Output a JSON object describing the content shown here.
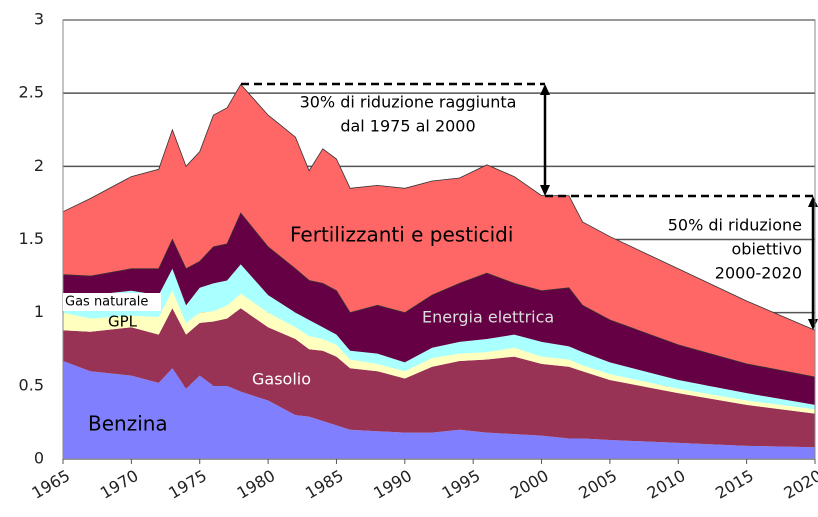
{
  "chart_data": {
    "type": "stacked_area",
    "x": [
      1965,
      1967,
      1970,
      1972,
      1973,
      1974,
      1975,
      1976,
      1977,
      1978,
      1980,
      1982,
      1983,
      1984,
      1985,
      1986,
      1988,
      1990,
      1992,
      1994,
      1996,
      1998,
      2000,
      2002,
      2003,
      2005,
      2010,
      2015,
      2020
    ],
    "series": [
      {
        "name": "Benzina",
        "color": "#8080ff",
        "values": [
          0.67,
          0.6,
          0.57,
          0.52,
          0.62,
          0.48,
          0.57,
          0.5,
          0.5,
          0.46,
          0.4,
          0.3,
          0.29,
          0.26,
          0.23,
          0.2,
          0.19,
          0.18,
          0.18,
          0.2,
          0.18,
          0.17,
          0.16,
          0.14,
          0.14,
          0.13,
          0.11,
          0.09,
          0.08
        ]
      },
      {
        "name": "Gasolio",
        "color": "#993355",
        "values": [
          0.21,
          0.27,
          0.33,
          0.33,
          0.41,
          0.37,
          0.36,
          0.44,
          0.46,
          0.57,
          0.5,
          0.52,
          0.46,
          0.48,
          0.47,
          0.42,
          0.41,
          0.37,
          0.45,
          0.47,
          0.5,
          0.53,
          0.49,
          0.49,
          0.46,
          0.41,
          0.34,
          0.28,
          0.23
        ]
      },
      {
        "name": "GPL",
        "color": "#ffffc0",
        "values": [
          0.12,
          0.09,
          0.08,
          0.12,
          0.12,
          0.08,
          0.07,
          0.07,
          0.09,
          0.1,
          0.1,
          0.08,
          0.09,
          0.08,
          0.08,
          0.06,
          0.05,
          0.05,
          0.06,
          0.05,
          0.05,
          0.06,
          0.05,
          0.05,
          0.04,
          0.04,
          0.03,
          0.03,
          0.03
        ]
      },
      {
        "name": "Gas naturale",
        "color": "#aaffff",
        "values": [
          0.13,
          0.16,
          0.17,
          0.15,
          0.15,
          0.12,
          0.17,
          0.19,
          0.17,
          0.2,
          0.12,
          0.1,
          0.11,
          0.08,
          0.07,
          0.06,
          0.07,
          0.06,
          0.07,
          0.08,
          0.09,
          0.09,
          0.1,
          0.09,
          0.09,
          0.08,
          0.06,
          0.05,
          0.03
        ]
      },
      {
        "name": "Energia elettrica",
        "color": "#660044",
        "values": [
          0.13,
          0.13,
          0.15,
          0.18,
          0.2,
          0.25,
          0.18,
          0.25,
          0.25,
          0.35,
          0.33,
          0.3,
          0.27,
          0.3,
          0.3,
          0.26,
          0.33,
          0.34,
          0.36,
          0.4,
          0.45,
          0.35,
          0.35,
          0.4,
          0.32,
          0.29,
          0.24,
          0.2,
          0.19
        ]
      },
      {
        "name": "Fertilizzanti e pesticidi",
        "color": "#ff6666",
        "values": [
          0.43,
          0.53,
          0.63,
          0.68,
          0.75,
          0.7,
          0.75,
          0.9,
          0.93,
          0.88,
          0.9,
          0.9,
          0.75,
          0.92,
          0.9,
          0.85,
          0.82,
          0.85,
          0.78,
          0.72,
          0.74,
          0.73,
          0.65,
          0.63,
          0.57,
          0.57,
          0.52,
          0.43,
          0.32
        ]
      }
    ],
    "xlim": [
      1965,
      2020
    ],
    "xticks": [
      1965,
      1970,
      1975,
      1980,
      1985,
      1990,
      1995,
      2000,
      2005,
      2010,
      2015,
      2020
    ],
    "ylim": [
      0,
      3
    ],
    "yticks": [
      0,
      0.5,
      1,
      1.5,
      2,
      2.5,
      3
    ],
    "grid": true,
    "annotations": [
      {
        "lines": [
          "30% di riduzione raggiunta",
          "dal 1975 al 2000"
        ]
      },
      {
        "lines": [
          "50% di riduzione",
          "obiettivo",
          "2000-2020"
        ]
      }
    ]
  }
}
